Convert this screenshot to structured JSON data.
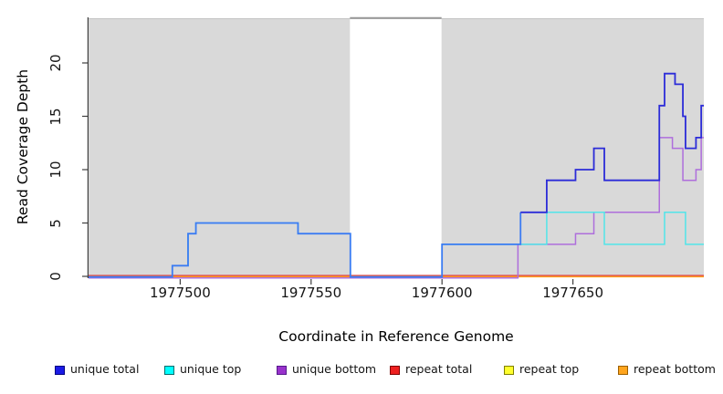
{
  "figure": {
    "plot_bg_color": "#D9D9D9",
    "plot_top_hairline_color": "#C4C4C4",
    "axis_color": "#3F3F3F",
    "gap_region": {
      "x_from": 1977565,
      "x_to": 1977600,
      "fill": "#FFFFFF",
      "top_border_color": "#999999"
    },
    "x_axis": {
      "label": "Coordinate in Reference Genome",
      "ticks": [
        "1977500",
        "1977550",
        "1977600",
        "1977650"
      ]
    },
    "y_axis": {
      "label": "Read Coverage Depth",
      "ticks": [
        "0",
        "5",
        "10",
        "15",
        "20"
      ]
    }
  },
  "chart_data": {
    "type": "line",
    "step": true,
    "title": "",
    "xlabel": "Coordinate in Reference Genome",
    "ylabel": "Read Coverage Depth",
    "xlim": [
      1977465,
      1977700
    ],
    "ylim": [
      0,
      24.2
    ],
    "grid": false,
    "legend_position": "bottom",
    "series": [
      {
        "name": "unique total",
        "color": "#2C2CD8",
        "left_color": "#3C7CF2",
        "split_x": 1977630,
        "width": 1.8,
        "zero_offset": 0.7,
        "steps": [
          [
            1977465,
            0
          ],
          [
            1977497,
            1
          ],
          [
            1977503,
            4
          ],
          [
            1977506,
            5
          ],
          [
            1977545,
            4
          ],
          [
            1977565,
            0
          ],
          [
            1977600,
            3
          ],
          [
            1977630,
            6
          ],
          [
            1977640,
            9
          ],
          [
            1977651,
            10
          ],
          [
            1977658,
            12
          ],
          [
            1977662,
            9
          ],
          [
            1977683,
            16
          ],
          [
            1977685,
            19
          ],
          [
            1977689,
            18
          ],
          [
            1977692,
            15
          ],
          [
            1977693,
            12
          ],
          [
            1977697,
            13
          ],
          [
            1977699,
            16
          ],
          [
            1977700,
            16
          ]
        ]
      },
      {
        "name": "unique top",
        "color": "#52E5E9",
        "width": 1.5,
        "zero_offset": 0.7,
        "steps": [
          [
            1977465,
            0
          ],
          [
            1977497,
            1
          ],
          [
            1977503,
            4
          ],
          [
            1977506,
            5
          ],
          [
            1977545,
            4
          ],
          [
            1977565,
            0
          ],
          [
            1977600,
            3
          ],
          [
            1977640,
            6
          ],
          [
            1977662,
            3
          ],
          [
            1977685,
            6
          ],
          [
            1977693,
            3
          ],
          [
            1977700,
            3
          ]
        ]
      },
      {
        "name": "unique bottom",
        "color": "#AE6EDC",
        "width": 1.5,
        "zero_offset": 1.7,
        "steps": [
          [
            1977465,
            0
          ],
          [
            1977629,
            3
          ],
          [
            1977651,
            4
          ],
          [
            1977658,
            6
          ],
          [
            1977683,
            13
          ],
          [
            1977688,
            12
          ],
          [
            1977692,
            9
          ],
          [
            1977697,
            10
          ],
          [
            1977699,
            13
          ],
          [
            1977700,
            13
          ]
        ]
      },
      {
        "name": "repeat total",
        "color": "#E05050",
        "width": 1.4,
        "zero_offset": -0.9,
        "steps": [
          [
            1977465,
            0
          ],
          [
            1977700,
            0
          ]
        ]
      },
      {
        "name": "repeat top",
        "color": "#F2F21E",
        "width": 1.2,
        "zero_offset": -0.9,
        "steps": [
          [
            1977465,
            0
          ],
          [
            1977700,
            0
          ]
        ]
      },
      {
        "name": "repeat bottom",
        "color": "#FF9E1B",
        "width": 1.6,
        "zero_offset": 0.3,
        "steps": [
          [
            1977465,
            0
          ],
          [
            1977700,
            0
          ]
        ]
      }
    ]
  },
  "legend": {
    "items": [
      {
        "label": "unique total",
        "fill": "#1A1AE6",
        "border": "#000080"
      },
      {
        "label": "unique top",
        "fill": "#00FFFF",
        "border": "#006B6B"
      },
      {
        "label": "unique bottom",
        "fill": "#9932CC",
        "border": "#551A8B"
      },
      {
        "label": "repeat total",
        "fill": "#EE2020",
        "border": "#800000"
      },
      {
        "label": "repeat top",
        "fill": "#FFFF2E",
        "border": "#808000"
      },
      {
        "label": "repeat bottom",
        "fill": "#FFA51E",
        "border": "#9C5F00"
      }
    ]
  }
}
